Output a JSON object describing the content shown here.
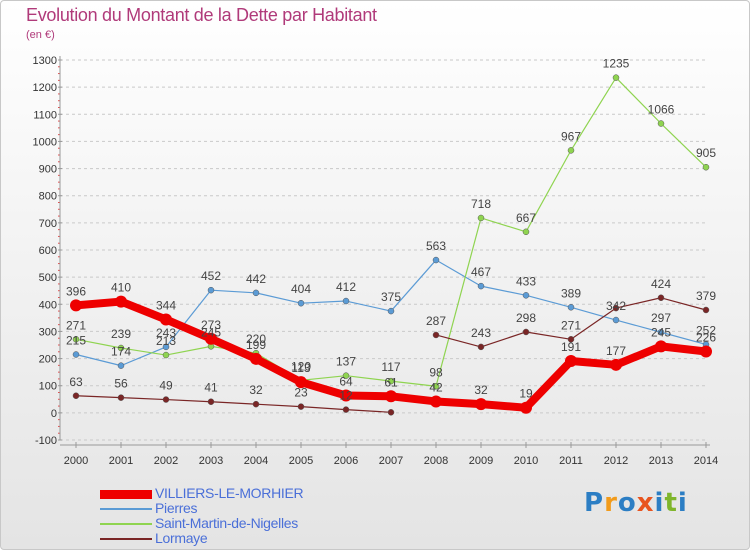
{
  "header": {
    "title": "Evolution du Montant de la Dette par Habitant",
    "subtitle": "(en €)"
  },
  "logo": {
    "text": "Proxiti",
    "colors": [
      "#2c7ec4",
      "#f29b1b",
      "#2c7ec4",
      "#e8541f",
      "#2c7ec4",
      "#7fb52b",
      "#2c7ec4"
    ]
  },
  "chart_data": {
    "type": "line",
    "title": "Evolution du Montant de la Dette par Habitant",
    "subtitle": "(en €)",
    "x": [
      "2000",
      "2001",
      "2002",
      "2003",
      "2004",
      "2005",
      "2006",
      "2007",
      "2008",
      "2009",
      "2010",
      "2011",
      "2012",
      "2013",
      "2014"
    ],
    "y_ticks": [
      -100,
      0,
      100,
      200,
      300,
      400,
      500,
      600,
      700,
      800,
      900,
      1000,
      1100,
      1200,
      1300
    ],
    "ylim": [
      -100,
      1300
    ],
    "grid": "horizontal dashed",
    "legend_position": "bottom-left",
    "series": [
      {
        "name": "VILLIERS-LE-MORHIER",
        "color": "#ee0000",
        "width": 8,
        "values": [
          396,
          410,
          344,
          273,
          199,
          113,
          64,
          61,
          42,
          32,
          19,
          191,
          177,
          245,
          226
        ],
        "labels": [
          "396",
          "410",
          "344",
          "273",
          "199",
          "113",
          "64",
          "61",
          "42",
          "32",
          "19",
          "191",
          "177",
          "245",
          "226"
        ]
      },
      {
        "name": "Pierres",
        "color": "#5b9bd5",
        "width": 1.2,
        "values": [
          215,
          174,
          243,
          452,
          442,
          404,
          412,
          375,
          563,
          467,
          433,
          389,
          342,
          297,
          252
        ],
        "labels": [
          "215",
          "174",
          "243",
          "452",
          "442",
          "404",
          "412",
          "375",
          "563",
          "467",
          "433",
          "389",
          "342",
          "297",
          "252"
        ]
      },
      {
        "name": "Saint-Martin-de-Nigelles",
        "color": "#8fd450",
        "width": 1.2,
        "values": [
          271,
          239,
          213,
          245,
          220,
          120,
          137,
          117,
          98,
          718,
          667,
          967,
          1235,
          1066,
          905
        ],
        "labels": [
          "271",
          "239",
          "213",
          "245",
          "220",
          "120",
          "137",
          "117",
          "98",
          "718",
          "667",
          "967",
          "1235",
          "1066",
          "905"
        ]
      },
      {
        "name": "Lormaye",
        "color": "#7a2626",
        "width": 1.2,
        "segments": [
          [
            0,
            7
          ],
          [
            8,
            14
          ]
        ],
        "values": [
          63,
          56,
          49,
          41,
          32,
          23,
          12,
          2,
          287,
          243,
          298,
          271,
          386,
          424,
          379
        ],
        "labels": [
          "63",
          "56",
          "49",
          "41",
          "32",
          "23",
          "12",
          "",
          "287",
          "243",
          "298",
          "271",
          "",
          "424",
          "379"
        ]
      }
    ]
  }
}
